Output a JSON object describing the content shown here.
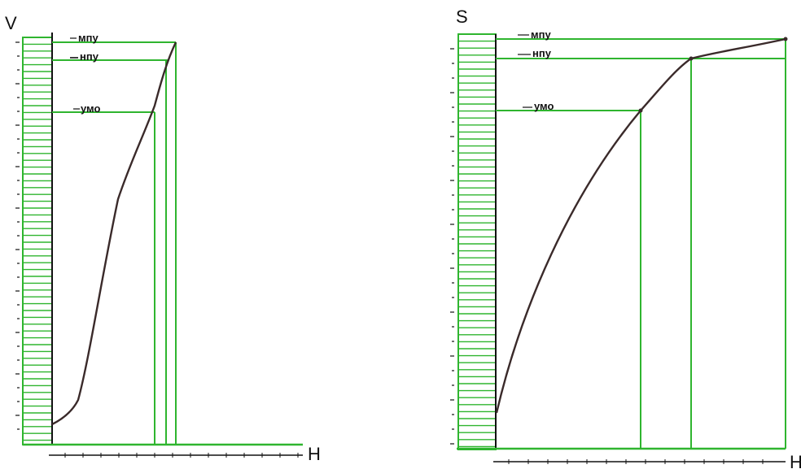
{
  "colors": {
    "green": "#2fb52f",
    "curve": "#3a2a2a",
    "axis": "#111111",
    "ink": "#111111"
  },
  "panels": [
    {
      "name": "volume-panel",
      "y_axis_label": "V",
      "x_axis_label": "H",
      "levels": [
        "мпу",
        "нпу",
        "умо"
      ]
    },
    {
      "name": "area-panel",
      "y_axis_label": "S",
      "x_axis_label": "H",
      "levels": [
        "мпу",
        "нпу",
        "умо"
      ]
    }
  ]
}
